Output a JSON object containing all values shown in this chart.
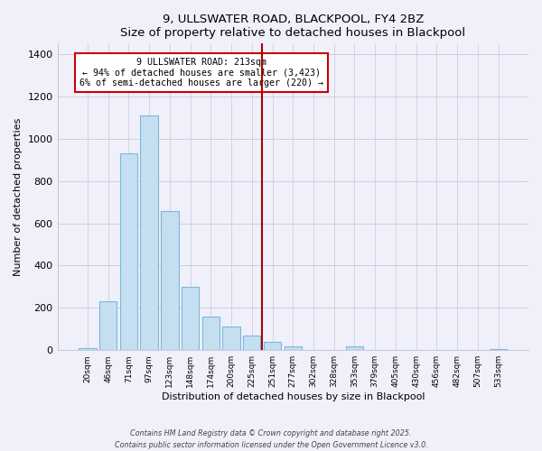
{
  "title": "9, ULLSWATER ROAD, BLACKPOOL, FY4 2BZ",
  "subtitle": "Size of property relative to detached houses in Blackpool",
  "xlabel": "Distribution of detached houses by size in Blackpool",
  "ylabel": "Number of detached properties",
  "bar_labels": [
    "20sqm",
    "46sqm",
    "71sqm",
    "97sqm",
    "123sqm",
    "148sqm",
    "174sqm",
    "200sqm",
    "225sqm",
    "251sqm",
    "277sqm",
    "302sqm",
    "328sqm",
    "353sqm",
    "379sqm",
    "405sqm",
    "430sqm",
    "456sqm",
    "482sqm",
    "507sqm",
    "533sqm"
  ],
  "bar_values": [
    10,
    233,
    930,
    1110,
    660,
    300,
    160,
    110,
    70,
    40,
    20,
    0,
    0,
    17,
    0,
    0,
    0,
    0,
    0,
    0,
    5
  ],
  "bar_color": "#c5dff0",
  "bar_edge_color": "#7ab8de",
  "vline_x": 8.5,
  "vline_color": "#aa0000",
  "annotation_title": "9 ULLSWATER ROAD: 213sqm",
  "annotation_line1": "← 94% of detached houses are smaller (3,423)",
  "annotation_line2": "6% of semi-detached houses are larger (220) →",
  "ylim": [
    0,
    1450
  ],
  "yticks": [
    0,
    200,
    400,
    600,
    800,
    1000,
    1200,
    1400
  ],
  "footnote1": "Contains HM Land Registry data © Crown copyright and database right 2025.",
  "footnote2": "Contains public sector information licensed under the Open Government Licence v3.0.",
  "bg_color": "#f0f0fa",
  "grid_color": "#c8c8dc"
}
